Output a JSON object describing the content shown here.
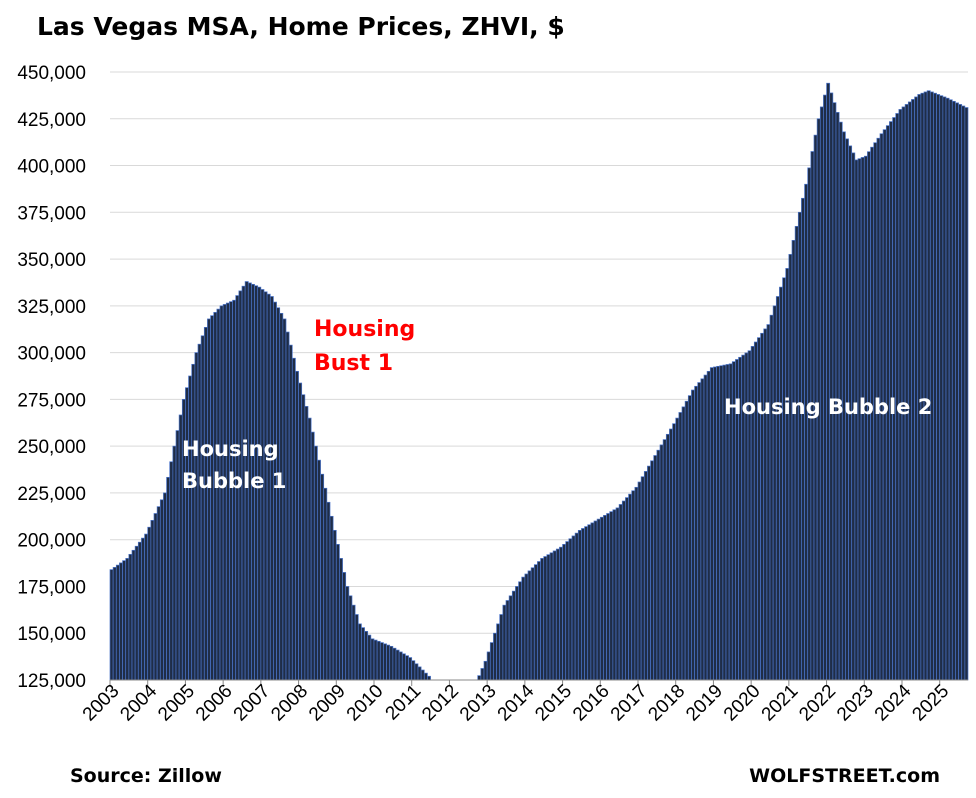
{
  "chart_data": {
    "type": "bar",
    "title": "Las Vegas  MSA, Home Prices, ZHVI, $",
    "ylim": [
      125000,
      450000
    ],
    "yticks": [
      125000,
      150000,
      175000,
      200000,
      225000,
      250000,
      275000,
      300000,
      325000,
      350000,
      375000,
      400000,
      425000,
      450000
    ],
    "ytick_labels": [
      "125,000",
      "150,000",
      "175,000",
      "200,000",
      "225,000",
      "250,000",
      "275,000",
      "300,000",
      "325,000",
      "350,000",
      "375,000",
      "400,000",
      "425,000",
      "450,000"
    ],
    "x_labels": [
      "2003",
      "2004",
      "2005",
      "2006",
      "2007",
      "2008",
      "2009",
      "2010",
      "2011",
      "2012",
      "2013",
      "2014",
      "2015",
      "2016",
      "2017",
      "2018",
      "2019",
      "2020",
      "2021",
      "2022",
      "2023",
      "2024",
      "2025"
    ],
    "grid": true,
    "frequency": "monthly",
    "start": "2003-01",
    "end": "2025-09",
    "anchors": [
      [
        "2003-01",
        184000
      ],
      [
        "2003-06",
        190000
      ],
      [
        "2003-12",
        203000
      ],
      [
        "2004-06",
        225000
      ],
      [
        "2004-09",
        250000
      ],
      [
        "2004-12",
        275000
      ],
      [
        "2005-04",
        300000
      ],
      [
        "2005-08",
        318000
      ],
      [
        "2005-12",
        325000
      ],
      [
        "2006-04",
        328000
      ],
      [
        "2006-08",
        338000
      ],
      [
        "2006-12",
        335000
      ],
      [
        "2007-04",
        330000
      ],
      [
        "2007-08",
        318000
      ],
      [
        "2007-12",
        290000
      ],
      [
        "2008-04",
        265000
      ],
      [
        "2008-08",
        235000
      ],
      [
        "2008-12",
        205000
      ],
      [
        "2009-04",
        175000
      ],
      [
        "2009-08",
        155000
      ],
      [
        "2009-12",
        147000
      ],
      [
        "2010-06",
        143000
      ],
      [
        "2010-12",
        137000
      ],
      [
        "2011-06",
        127000
      ],
      [
        "2011-12",
        115000
      ],
      [
        "2012-06",
        112000
      ],
      [
        "2012-12",
        135000
      ],
      [
        "2013-06",
        165000
      ],
      [
        "2013-12",
        180000
      ],
      [
        "2014-06",
        190000
      ],
      [
        "2014-12",
        196000
      ],
      [
        "2015-06",
        205000
      ],
      [
        "2015-12",
        211000
      ],
      [
        "2016-06",
        217000
      ],
      [
        "2016-12",
        228000
      ],
      [
        "2017-06",
        245000
      ],
      [
        "2017-12",
        262000
      ],
      [
        "2018-06",
        280000
      ],
      [
        "2018-12",
        292000
      ],
      [
        "2019-06",
        294000
      ],
      [
        "2019-12",
        301000
      ],
      [
        "2020-06",
        315000
      ],
      [
        "2020-12",
        345000
      ],
      [
        "2021-06",
        390000
      ],
      [
        "2021-10",
        425000
      ],
      [
        "2022-01",
        444000
      ],
      [
        "2022-06",
        418000
      ],
      [
        "2022-10",
        403000
      ],
      [
        "2023-01",
        405000
      ],
      [
        "2023-06",
        417000
      ],
      [
        "2023-12",
        430000
      ],
      [
        "2024-06",
        438000
      ],
      [
        "2024-09",
        440000
      ],
      [
        "2025-03",
        436000
      ],
      [
        "2025-09",
        431000
      ]
    ],
    "annotations": [
      {
        "lines": [
          "Housing",
          "Bubble 1"
        ],
        "color": "#ffffff"
      },
      {
        "lines": [
          "Housing",
          "Bust 1"
        ],
        "color": "#ff0000"
      },
      {
        "lines": [
          "Housing Bubble 2"
        ],
        "color": "#ffffff"
      }
    ],
    "bar_color": "#1f2d47",
    "bar_edge_color": "#4a73c8"
  },
  "footer": {
    "source": "Source: Zillow",
    "brand": "WOLFSTREET.com"
  }
}
